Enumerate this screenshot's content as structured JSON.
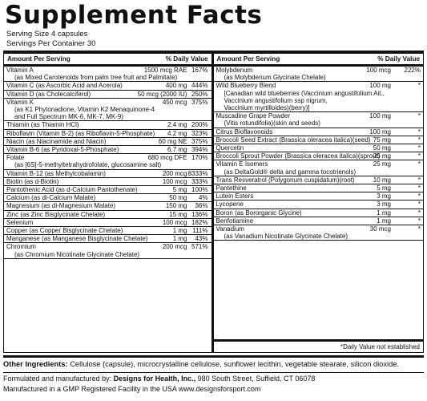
{
  "title": "Supplement Facts",
  "serving_size": "Serving Size 4 capsules",
  "servings_per_container": "Servings Per Container 30",
  "header": {
    "amount_per_serving": "Amount Per Serving",
    "daily_value": "% Daily Value"
  },
  "left_rows": [
    {
      "name": "Vitamin A",
      "sub": [
        "(as Mixed Carotenoids from palm tree fruit and Palmitate)"
      ],
      "amount": "1500 mcg RAE",
      "dv": "167%"
    },
    {
      "name": "Vitamin C (as Ascorbic Acid and Acerola)",
      "sub": [],
      "amount": "400 mg",
      "dv": "444%"
    },
    {
      "name": "Vitamin D (as Cholecalciferol)",
      "sub": [],
      "amount": "50 mcg (2000 IU)",
      "dv": "250%"
    },
    {
      "name": "Vitamin K",
      "sub": [
        "(as K1 Phytonadione, Vitamin K2 Menaquinone-4",
        "and Full Spectrum MK-6, MK-7, MK-9)"
      ],
      "amount": "450 mcg",
      "dv": "375%"
    },
    {
      "name": "Thiamin (as Thiamin HCl)",
      "sub": [],
      "amount": "2.4 mg",
      "dv": "200%"
    },
    {
      "name": "Riboflavin (Vitamin B-2) (as Riboflavin-5-Phosphate)",
      "sub": [],
      "amount": "4.2 mg",
      "dv": "323%"
    },
    {
      "name": "Niacin (as Niacinamide and Niacin)",
      "sub": [],
      "amount": "60 mg NE",
      "dv": "375%"
    },
    {
      "name": "Vitamin B-6 (as Pyridoxal-5-Phosphate)",
      "sub": [],
      "amount": "6.7 mg",
      "dv": "394%"
    },
    {
      "name": "Folate",
      "sub": [
        "(as [6S]-5-methyltetrahydrofolate, glucosamine salt)"
      ],
      "amount": "680 mcg DFE",
      "dv": "170%"
    },
    {
      "name": "Vitamin B-12 (as Methylcobalamin)",
      "sub": [],
      "amount": "200 mcg",
      "dv": "8333%"
    },
    {
      "name": "Biotin (as d-Biotin)",
      "sub": [],
      "amount": "100 mcg",
      "dv": "333%"
    },
    {
      "name": "Pantothenic Acid (as d-Calcium Pantothenate)",
      "sub": [],
      "amount": "5 mg",
      "dv": "100%"
    },
    {
      "name": "Calcium (as di-Calcium Malate)",
      "sub": [],
      "amount": "50 mg",
      "dv": "4%"
    },
    {
      "name": "Magnesium (as di-Magnesium Malate)",
      "sub": [],
      "amount": "150 mg",
      "dv": "36%"
    },
    {
      "name": "Zinc (as Zinc Bisglycinate Chelate)",
      "sub": [],
      "amount": "15 mg",
      "dv": "136%"
    },
    {
      "name": "Selenium",
      "sub": [],
      "amount": "100 mcg",
      "dv": "182%"
    },
    {
      "name": "Copper (as Copper Bisglycinate Chelate)",
      "sub": [],
      "amount": "1 mg",
      "dv": "111%"
    },
    {
      "name": "Manganese (as Manganese Bisglycinate Chelate)",
      "sub": [],
      "amount": "1 mg",
      "dv": "43%"
    },
    {
      "name": "Chromium",
      "sub": [
        "(as Chromium Nicotinate Glycinate Chelate)"
      ],
      "amount": "200 mcg",
      "dv": "571%"
    }
  ],
  "right_rows": [
    {
      "name": "Molybdenum",
      "sub": [
        "(as Molybdenum Glycinate Chelate)"
      ],
      "amount": "100 mcg",
      "dv": "222%"
    },
    {
      "name": "Wild Blueberry Blend",
      "sub": [
        "[Canadian wild blueberries (Vaccinium angustifolium Ait.,",
        "Vaccinium angustifolium ssp nigrum,",
        "Vaccinium myrtilloides)(berry)]"
      ],
      "amount": "100 mg",
      "dv": "*"
    },
    {
      "name": "Muscadine Grape Powder",
      "sub": [
        "(Vitis rotundifolia)(skin and seeds)"
      ],
      "amount": "100 mg",
      "dv": "*"
    },
    {
      "name": "Citrus Bioflavonoids",
      "sub": [],
      "amount": "100 mg",
      "dv": "*"
    },
    {
      "name": "Broccoli Seed Extract (Brassica oleracea italica)(seed)",
      "sub": [],
      "amount": "75 mg",
      "dv": "*"
    },
    {
      "name": "Quercetin",
      "sub": [],
      "amount": "50 mg",
      "dv": "*"
    },
    {
      "name": "Broccoli Sprout Powder (Brassica oleracea italica)(sprout)",
      "sub": [],
      "amount": "25 mg",
      "dv": "*"
    },
    {
      "name": "Vitamin E Isomers",
      "sub": [
        "(as DeltaGold® delta and gamma tocotrienols)"
      ],
      "amount": "25 mg",
      "dv": "*"
    },
    {
      "name": "Trans Resveratrol (Polygonum cuspidatum)(root)",
      "sub": [],
      "amount": "10 mg",
      "dv": "*"
    },
    {
      "name": "Pantethine",
      "sub": [],
      "amount": "5 mg",
      "dv": "*"
    },
    {
      "name": "Lutein Esters",
      "sub": [],
      "amount": "3 mg",
      "dv": "*"
    },
    {
      "name": "Lycopene",
      "sub": [],
      "amount": "3 mg",
      "dv": "*"
    },
    {
      "name": "Boron (as Bororganic Glycine)",
      "sub": [],
      "amount": "1 mg",
      "dv": "*"
    },
    {
      "name": "Benfotiamine",
      "sub": [],
      "amount": "1 mg",
      "dv": "*"
    },
    {
      "name": "Vanadium",
      "sub": [
        "(as Vanadium Nicotinate Glycinate Chelate)"
      ],
      "amount": "30 mcg",
      "dv": "*"
    }
  ],
  "dv_note": "*Daily Value not established",
  "other_ingredients_label": "Other Ingredients:",
  "other_ingredients": "Cellulose (capsule), microcrystalline cellulose, sunflower lecithin, vegetable stearate, silicon dioxide.",
  "mfg_prefix": "Formulated and manufactured by:",
  "mfg_company": "Designs for Health, Inc.,",
  "mfg_address": "980 South Street, Suffield, CT 06078",
  "mfg_facility": "Manufactured in a GMP Registered Facility in the USA  www.designsforsport.com"
}
